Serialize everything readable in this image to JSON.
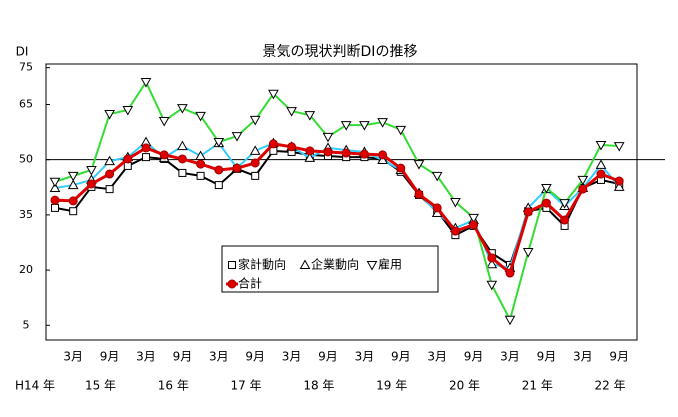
{
  "chart_data": {
    "type": "line",
    "title": "景気の現状判断DIの推移",
    "y_label": "DI",
    "categories": [
      null,
      "3月",
      null,
      "9月",
      null,
      "3月",
      null,
      "9月",
      null,
      "3月",
      null,
      "9月",
      null,
      "3月",
      null,
      "9月",
      null,
      "3月",
      null,
      "9月",
      null,
      "3月",
      null,
      "9月",
      null,
      "3月",
      null,
      "9月",
      null,
      "3月",
      null,
      "9月"
    ],
    "year_labels": [
      "H14 年",
      "15 年",
      "16 年",
      "17 年",
      "18 年",
      "19 年",
      "20 年",
      "21 年",
      "22 年"
    ],
    "ylim": [
      1,
      76
    ],
    "yticks": [
      5,
      20,
      35,
      50,
      65,
      75
    ],
    "reference_line": 50,
    "series": [
      {
        "name": "家計動向",
        "color": "#000000",
        "marker": "square",
        "values": [
          36.9,
          36,
          42.6,
          42,
          48.3,
          50.7,
          50.2,
          46.4,
          45.6,
          43.1,
          47.5,
          45.6,
          52.4,
          52.1,
          51.3,
          51,
          50.7,
          50.7,
          50.2,
          46.7,
          40.4,
          36,
          29.5,
          32,
          24.6,
          21.4,
          36,
          36.9,
          32,
          42.3,
          44.5,
          43.4
        ]
      },
      {
        "name": "企業動向",
        "color": "#33ccff",
        "marker": "triangle-up",
        "values": [
          42.3,
          43.1,
          44.5,
          49.6,
          50.7,
          54.8,
          50.5,
          53.7,
          51,
          54.5,
          47.7,
          52.4,
          54.5,
          53.5,
          50.5,
          53.2,
          52.6,
          52.1,
          49.9,
          47.2,
          40.9,
          35.5,
          31.4,
          33.6,
          21.6,
          20.6,
          36.9,
          42,
          37.4,
          42.3,
          48.6,
          42.6
        ]
      },
      {
        "name": "雇用",
        "color": "#33dd33",
        "marker": "triangle-down",
        "values": [
          44,
          45.6,
          47.2,
          62.4,
          63.5,
          71.1,
          60.5,
          64,
          61.9,
          54.8,
          56.4,
          60.8,
          67.9,
          63.2,
          62.1,
          56.2,
          59.4,
          59.4,
          60.2,
          58.1,
          48.8,
          45.6,
          38.5,
          34.2,
          16,
          6.5,
          24.9,
          42.3,
          38.2,
          44.5,
          54,
          53.7
        ]
      },
      {
        "name": "合計",
        "color": "#e00000",
        "marker": "circle",
        "values": [
          39,
          38.8,
          43.4,
          46.1,
          50.2,
          53.2,
          51.3,
          50.2,
          48.8,
          47.2,
          47.7,
          49.1,
          54.3,
          53.5,
          52.4,
          52.1,
          51.8,
          51.5,
          51.3,
          47.7,
          40.6,
          36.9,
          30.6,
          32.3,
          23.3,
          19.2,
          35.8,
          38.2,
          33.6,
          42,
          46.1,
          44.2
        ]
      }
    ]
  }
}
